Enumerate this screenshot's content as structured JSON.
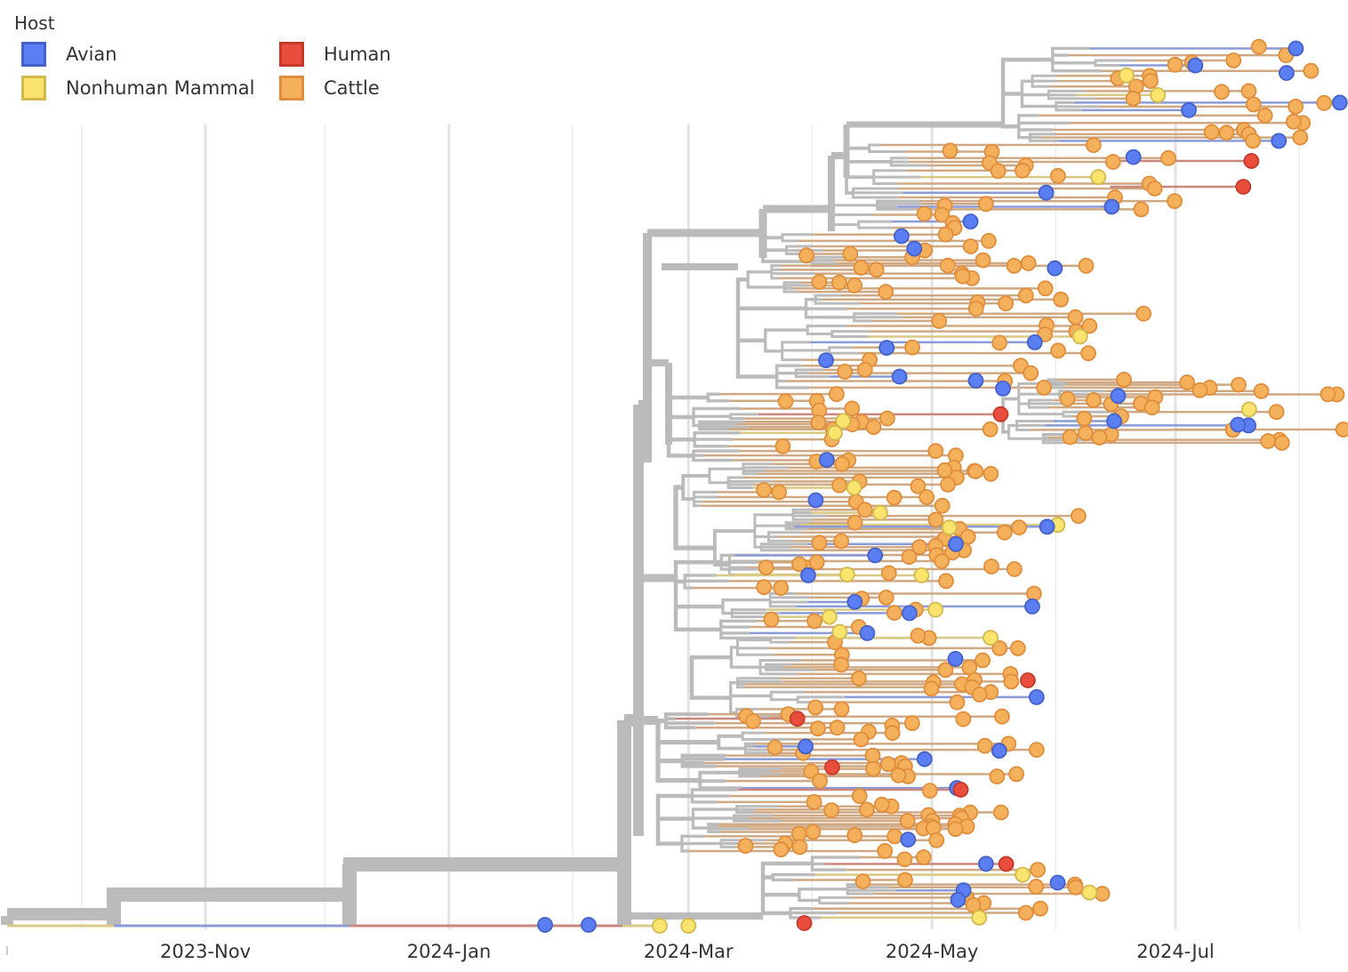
{
  "chart_data": {
    "type": "phylogenetic-tree",
    "title": "",
    "xlabel": "",
    "ylabel": "",
    "x_axis": {
      "type": "time",
      "range": [
        "2023-Sep-10",
        "2024-Aug-15"
      ],
      "major_ticks": [
        "2023-Nov",
        "2024-Jan",
        "2024-Mar",
        "2024-May",
        "2024-Jul"
      ],
      "minor_ticks": [
        "2023-Oct",
        "2023-Dec",
        "2024-Feb",
        "2024-Apr",
        "2024-Jun",
        "2024-Aug"
      ],
      "grid": true
    },
    "color_by": "Host",
    "legend": {
      "title": "Host",
      "placement": "top-left",
      "entries": [
        {
          "name": "Avian",
          "fill": "#5b7ff2",
          "stroke": "#4461c9"
        },
        {
          "name": "Human",
          "fill": "#e94e3c",
          "stroke": "#c33a2b"
        },
        {
          "name": "Nonhuman Mammal",
          "fill": "#fbe46e",
          "stroke": "#d2b94e"
        },
        {
          "name": "Cattle",
          "fill": "#f4b05a",
          "stroke": "#e08d3c"
        }
      ]
    },
    "branch_color_internal": "#bbbbbb",
    "tip_host_share": {
      "Cattle": 0.78,
      "Avian": 0.13,
      "Nonhuman Mammal": 0.07,
      "Human": 0.02
    },
    "root_date": "2023-Sep-10",
    "most_recent_tip": "2024-Aug-12",
    "notable_tips": [
      {
        "host": "Avian",
        "date": "2024-Feb-05"
      },
      {
        "host": "Nonhuman Mammal",
        "date": "2024-Mar-01"
      },
      {
        "host": "Human",
        "date": "2024-Mar-30"
      },
      {
        "host": "Human",
        "date": "2024-Jul-20"
      },
      {
        "host": "Human",
        "date": "2024-Jul-18"
      },
      {
        "host": "Human",
        "date": "2024-May-25"
      },
      {
        "host": "Cattle",
        "date": "2024-Aug-12"
      }
    ]
  }
}
